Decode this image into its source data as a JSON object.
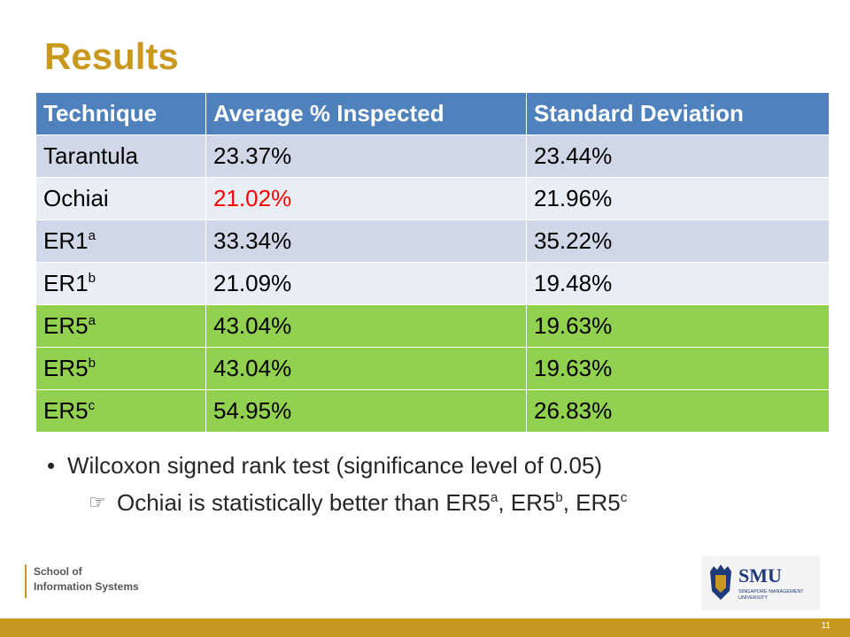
{
  "slide": {
    "title": "Results",
    "page_number": "11"
  },
  "table": {
    "headers": [
      "Technique",
      "Average % Inspected",
      "Standard Deviation"
    ],
    "rows": [
      {
        "technique": "Tarantula",
        "sup": "",
        "avg": "23.37%",
        "std": "23.44%"
      },
      {
        "technique": "Ochiai",
        "sup": "",
        "avg": "21.02%",
        "std": "21.96%"
      },
      {
        "technique": "ER1",
        "sup": "a",
        "avg": "33.34%",
        "std": "35.22%"
      },
      {
        "technique": "ER1",
        "sup": "b",
        "avg": "21.09%",
        "std": "19.48%"
      },
      {
        "technique": "ER5",
        "sup": "a",
        "avg": "43.04%",
        "std": "19.63%"
      },
      {
        "technique": "ER5",
        "sup": "b",
        "avg": "43.04%",
        "std": "19.63%"
      },
      {
        "technique": "ER5",
        "sup": "c",
        "avg": "54.95%",
        "std": "26.83%"
      }
    ]
  },
  "bullets": {
    "main": "Wilcoxon signed rank test (significance level of 0.05)",
    "sub_prefix": "Ochiai is statistically better than ER5",
    "sub_parts": [
      {
        "sep": "",
        "text": "",
        "sup": "a"
      },
      {
        "sep": ", ",
        "text": "ER5",
        "sup": "b"
      },
      {
        "sep": ", ",
        "text": "ER5",
        "sup": "c"
      }
    ]
  },
  "footer": {
    "school_line1": "School of",
    "school_line2": "Information Systems",
    "smu_logo_text": "SMU",
    "smu_logo_sub1": "SINGAPORE MANAGEMENT",
    "smu_logo_sub2": "UNIVERSITY"
  },
  "colors": {
    "title": "#c9981f",
    "header_bg": "#4f81bd",
    "row_dark": "#d0d8e8",
    "row_light": "#e9edf4",
    "row_highlight": "#92d050",
    "highlight_text": "#ff0000",
    "footer_bar": "#c9981f"
  },
  "icons": {
    "bullet": "bullet-dot",
    "sub_bullet": "pointing-hand-icon"
  }
}
